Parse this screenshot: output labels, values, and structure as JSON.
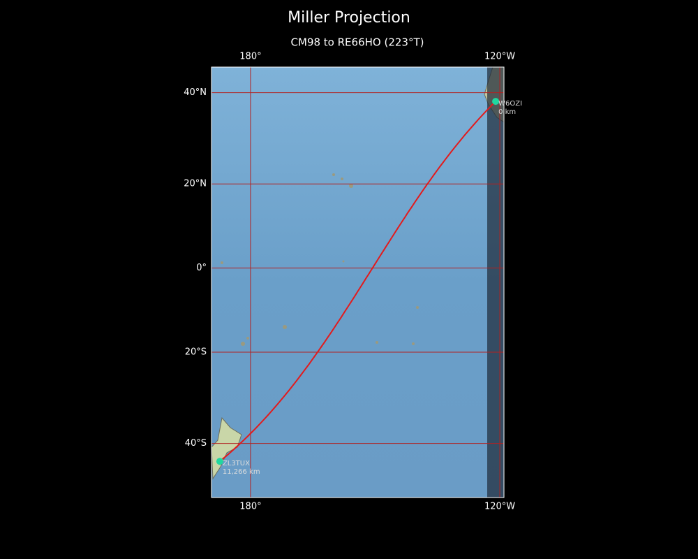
{
  "map": {
    "type": "miller",
    "title": "Miller Projection",
    "subtitle": "CM98 to RE66HO (223°T)",
    "lonlim": [
      170.6,
      241
    ],
    "latlim": [
      -50.5,
      45.1
    ],
    "lonticks": [
      {
        "value": 180,
        "label": "180°"
      },
      {
        "value": 240,
        "label": "120°W"
      }
    ],
    "latticks": [
      {
        "value": 40,
        "label": "40°N"
      },
      {
        "value": 20,
        "label": "20°N"
      },
      {
        "value": 0,
        "label": "0°"
      },
      {
        "value": -20,
        "label": "20°S"
      },
      {
        "value": -40,
        "label": "40°S"
      }
    ],
    "grid_color": "#b22222",
    "path_color": "#e31a1c",
    "station_color": "#20d8a0",
    "stations": [
      {
        "name": "W6OZI",
        "distance": "0 km",
        "lon": 239,
        "lat": 38.2
      },
      {
        "name": "ZL3TUX",
        "distance": "11,266 km",
        "lon": 172.6,
        "lat": -43.6
      }
    ]
  }
}
